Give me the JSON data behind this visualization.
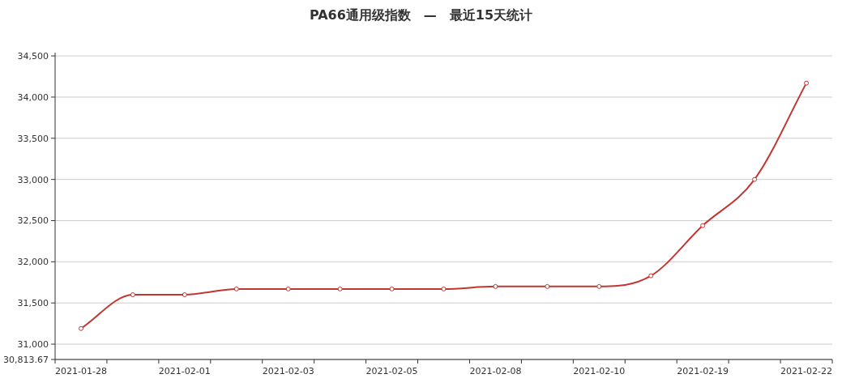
{
  "chart_data": {
    "type": "line",
    "title": "PA66通用级指数　—　最近15天统计",
    "categories": [
      "2021-01-28",
      null,
      "2021-02-01",
      null,
      "2021-02-03",
      null,
      "2021-02-05",
      null,
      "2021-02-08",
      null,
      "2021-02-10",
      null,
      "2021-02-19",
      null,
      "2021-02-22"
    ],
    "series": [
      {
        "color": "#c23531",
        "values": [
          31190,
          31600,
          31600,
          31670,
          31670,
          31670,
          31670,
          31670,
          31700,
          31700,
          31700,
          31830,
          32440,
          33000,
          34170
        ]
      }
    ],
    "ylim": [
      30813.67,
      34540
    ],
    "yticks": [
      {
        "value": 30813.67,
        "label": "30,813.67"
      },
      {
        "value": 31000,
        "label": "31,000"
      },
      {
        "value": 31500,
        "label": "31,500"
      },
      {
        "value": 32000,
        "label": "32,000"
      },
      {
        "value": 32500,
        "label": "32,500"
      },
      {
        "value": 33000,
        "label": "33,000"
      },
      {
        "value": 33500,
        "label": "33,500"
      },
      {
        "value": 34000,
        "label": "34,000"
      },
      {
        "value": 34500,
        "label": "34,500"
      }
    ],
    "grid": "y",
    "marker": "circle"
  }
}
